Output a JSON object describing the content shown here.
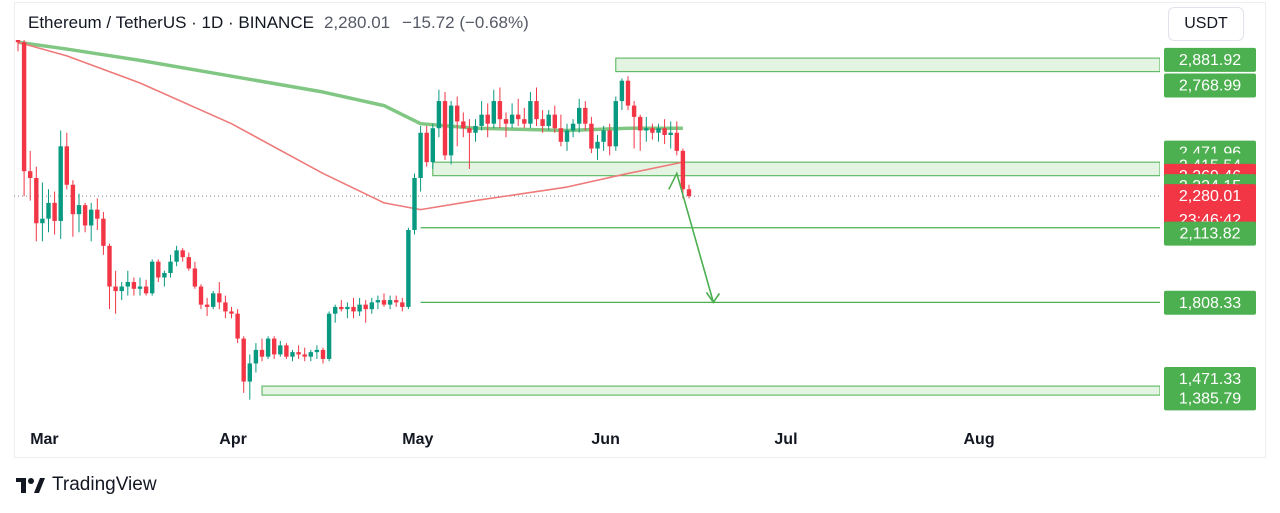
{
  "header": {
    "symbol": "Ethereum / TetherUS · 1D · BINANCE",
    "price": "2,280.01",
    "change": "−15.72 (−0.68%)"
  },
  "currency_button": "USDT",
  "brand": "TradingView",
  "colors": {
    "up": "#089981",
    "down": "#f23645",
    "zone_fill": "#e4f4e2",
    "zone_stroke": "#4caf50",
    "label_green": "#4caf50",
    "label_red": "#f23645",
    "ma_slow": "#81c784",
    "ma_fast": "#ef7a7a"
  },
  "chart_data": {
    "type": "candlestick",
    "ylim": [
      1290,
      2970
    ],
    "x_tick_labels": [
      "Mar",
      "Apr",
      "May",
      "Jun",
      "Jul",
      "Aug"
    ],
    "x_tick_candle_index": [
      2,
      33,
      63,
      94,
      124,
      155
    ],
    "candles": [
      [
        2990,
        3280,
        2920,
        2960
      ],
      [
        2960,
        3000,
        2280,
        2390
      ],
      [
        2390,
        2480,
        2260,
        2360
      ],
      [
        2360,
        2410,
        2080,
        2160
      ],
      [
        2160,
        2340,
        2080,
        2180
      ],
      [
        2180,
        2310,
        2120,
        2250
      ],
      [
        2250,
        2300,
        2110,
        2170
      ],
      [
        2170,
        2570,
        2090,
        2500
      ],
      [
        2500,
        2560,
        2310,
        2330
      ],
      [
        2330,
        2350,
        2100,
        2200
      ],
      [
        2200,
        2290,
        2120,
        2240
      ],
      [
        2240,
        2250,
        2120,
        2150
      ],
      [
        2150,
        2250,
        2080,
        2220
      ],
      [
        2220,
        2270,
        2130,
        2180
      ],
      [
        2180,
        2210,
        2020,
        2060
      ],
      [
        2060,
        2070,
        1780,
        1880
      ],
      [
        1880,
        1950,
        1760,
        1860
      ],
      [
        1860,
        1900,
        1820,
        1880
      ],
      [
        1880,
        1950,
        1840,
        1900
      ],
      [
        1900,
        1920,
        1840,
        1870
      ],
      [
        1870,
        1920,
        1840,
        1880
      ],
      [
        1880,
        1910,
        1840,
        1850
      ],
      [
        1850,
        2000,
        1840,
        1990
      ],
      [
        1990,
        2000,
        1900,
        1920
      ],
      [
        1920,
        1950,
        1880,
        1940
      ],
      [
        1940,
        2020,
        1920,
        1990
      ],
      [
        1990,
        2060,
        1970,
        2040
      ],
      [
        2040,
        2050,
        1990,
        2010
      ],
      [
        2010,
        2030,
        1950,
        1960
      ],
      [
        1960,
        1990,
        1870,
        1880
      ],
      [
        1880,
        1890,
        1780,
        1800
      ],
      [
        1800,
        1830,
        1750,
        1790
      ],
      [
        1790,
        1860,
        1780,
        1850
      ],
      [
        1850,
        1900,
        1780,
        1810
      ],
      [
        1810,
        1840,
        1740,
        1770
      ],
      [
        1770,
        1790,
        1740,
        1760
      ],
      [
        1760,
        1780,
        1630,
        1650
      ],
      [
        1650,
        1660,
        1410,
        1460
      ],
      [
        1460,
        1580,
        1380,
        1540
      ],
      [
        1540,
        1630,
        1500,
        1600
      ],
      [
        1600,
        1650,
        1550,
        1570
      ],
      [
        1570,
        1660,
        1560,
        1650
      ],
      [
        1650,
        1660,
        1560,
        1580
      ],
      [
        1580,
        1640,
        1570,
        1620
      ],
      [
        1620,
        1630,
        1560,
        1570
      ],
      [
        1570,
        1600,
        1550,
        1590
      ],
      [
        1590,
        1620,
        1560,
        1580
      ],
      [
        1580,
        1610,
        1550,
        1570
      ],
      [
        1570,
        1600,
        1550,
        1590
      ],
      [
        1590,
        1620,
        1560,
        1600
      ],
      [
        1600,
        1610,
        1540,
        1560
      ],
      [
        1560,
        1770,
        1550,
        1760
      ],
      [
        1760,
        1800,
        1720,
        1790
      ],
      [
        1790,
        1820,
        1770,
        1780
      ],
      [
        1780,
        1810,
        1740,
        1790
      ],
      [
        1790,
        1830,
        1740,
        1770
      ],
      [
        1770,
        1830,
        1750,
        1800
      ],
      [
        1800,
        1820,
        1720,
        1780
      ],
      [
        1780,
        1830,
        1760,
        1810
      ],
      [
        1810,
        1840,
        1780,
        1820
      ],
      [
        1820,
        1850,
        1790,
        1800
      ],
      [
        1800,
        1840,
        1780,
        1820
      ],
      [
        1820,
        1840,
        1790,
        1810
      ],
      [
        1810,
        1830,
        1770,
        1790
      ],
      [
        1790,
        2140,
        1780,
        2130
      ],
      [
        2130,
        2380,
        2110,
        2360
      ],
      [
        2360,
        2590,
        2300,
        2560
      ],
      [
        2560,
        2590,
        2410,
        2430
      ],
      [
        2430,
        2600,
        2400,
        2580
      ],
      [
        2580,
        2750,
        2540,
        2700
      ],
      [
        2700,
        2740,
        2440,
        2460
      ],
      [
        2460,
        2700,
        2420,
        2680
      ],
      [
        2680,
        2720,
        2500,
        2610
      ],
      [
        2610,
        2650,
        2540,
        2580
      ],
      [
        2580,
        2620,
        2400,
        2560
      ],
      [
        2560,
        2620,
        2520,
        2590
      ],
      [
        2590,
        2700,
        2570,
        2640
      ],
      [
        2640,
        2690,
        2540,
        2600
      ],
      [
        2600,
        2750,
        2580,
        2700
      ],
      [
        2700,
        2760,
        2580,
        2620
      ],
      [
        2620,
        2650,
        2540,
        2600
      ],
      [
        2600,
        2690,
        2580,
        2640
      ],
      [
        2640,
        2710,
        2590,
        2620
      ],
      [
        2620,
        2670,
        2580,
        2600
      ],
      [
        2600,
        2740,
        2580,
        2700
      ],
      [
        2700,
        2760,
        2590,
        2620
      ],
      [
        2620,
        2660,
        2560,
        2590
      ],
      [
        2590,
        2660,
        2570,
        2640
      ],
      [
        2640,
        2680,
        2560,
        2580
      ],
      [
        2580,
        2640,
        2500,
        2520
      ],
      [
        2520,
        2600,
        2480,
        2570
      ],
      [
        2570,
        2620,
        2540,
        2600
      ],
      [
        2600,
        2710,
        2560,
        2670
      ],
      [
        2670,
        2700,
        2570,
        2600
      ],
      [
        2600,
        2630,
        2470,
        2490
      ],
      [
        2490,
        2550,
        2440,
        2520
      ],
      [
        2520,
        2590,
        2480,
        2570
      ],
      [
        2570,
        2600,
        2460,
        2500
      ],
      [
        2500,
        2720,
        2480,
        2700
      ],
      [
        2700,
        2800,
        2660,
        2790
      ],
      [
        2790,
        2810,
        2660,
        2680
      ],
      [
        2680,
        2700,
        2490,
        2630
      ],
      [
        2630,
        2640,
        2480,
        2570
      ],
      [
        2570,
        2630,
        2520,
        2580
      ],
      [
        2580,
        2600,
        2530,
        2560
      ],
      [
        2560,
        2600,
        2520,
        2580
      ],
      [
        2580,
        2620,
        2510,
        2550
      ],
      [
        2550,
        2610,
        2490,
        2560
      ],
      [
        2560,
        2610,
        2460,
        2480
      ],
      [
        2480,
        2490,
        2270,
        2310
      ],
      [
        2310,
        2330,
        2270,
        2280
      ]
    ],
    "moving_averages": [
      {
        "color_key": "ma_slow",
        "values": [
          [
            0,
            2960
          ],
          [
            8,
            2930
          ],
          [
            20,
            2880
          ],
          [
            35,
            2810
          ],
          [
            50,
            2740
          ],
          [
            60,
            2680
          ],
          [
            66,
            2600
          ],
          [
            75,
            2580
          ],
          [
            90,
            2570
          ],
          [
            100,
            2580
          ],
          [
            109,
            2580
          ]
        ]
      },
      {
        "color_key": "ma_fast",
        "values": [
          [
            0,
            2960
          ],
          [
            8,
            2900
          ],
          [
            20,
            2780
          ],
          [
            35,
            2600
          ],
          [
            50,
            2380
          ],
          [
            60,
            2250
          ],
          [
            66,
            2220
          ],
          [
            75,
            2260
          ],
          [
            90,
            2320
          ],
          [
            100,
            2380
          ],
          [
            109,
            2430
          ]
        ]
      }
    ],
    "zones": [
      {
        "x_start_index": 98,
        "y_low": 2830,
        "y_high": 2890
      },
      {
        "x_start_index": 68,
        "y_low": 2370,
        "y_high": 2430
      },
      {
        "x_start_index": 40,
        "y_low": 1400,
        "y_high": 1440
      }
    ],
    "levels": [
      {
        "x_start_index": 66,
        "y": 2140
      },
      {
        "x_start_index": 66,
        "y": 1810
      }
    ],
    "projection": [
      [
        108,
        2380
      ],
      [
        114,
        1810
      ]
    ],
    "current_price": 2280.01,
    "price_labels": [
      {
        "text": "2,881.92",
        "value": 2881.92,
        "color_key": "label_green"
      },
      {
        "text": "2,768.99",
        "value": 2768.99,
        "color_key": "label_green"
      },
      {
        "text": "2,471.96",
        "value": 2471.96,
        "color_key": "label_green"
      },
      {
        "text": "2,415.54",
        "value": 2415.54,
        "color_key": "label_green"
      },
      {
        "text": "2,369.46",
        "value": 2369.46,
        "color_key": "label_red"
      },
      {
        "text": "2,324.15",
        "value": 2324.15,
        "color_key": "label_green"
      },
      {
        "text": "2,280.01",
        "value": 2280.01,
        "color_key": "label_red",
        "subtext": "23:46:42"
      },
      {
        "text": "2,113.82",
        "value": 2113.82,
        "color_key": "label_green"
      },
      {
        "text": "1,808.33",
        "value": 1808.33,
        "color_key": "label_green"
      },
      {
        "text": "1,471.33",
        "value": 1471.33,
        "color_key": "label_green"
      },
      {
        "text": "1,385.79",
        "value": 1385.79,
        "color_key": "label_green"
      }
    ]
  }
}
